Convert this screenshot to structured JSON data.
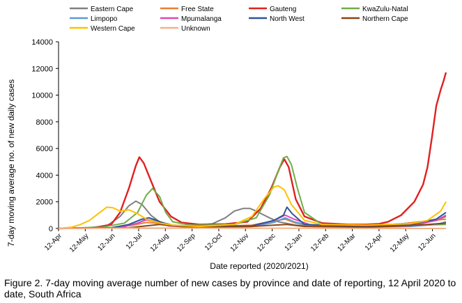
{
  "caption": "Figure 2. 7-day moving average number of new cases by province and date of reporting, 12 April 2020 to date, South Africa",
  "chart_data": {
    "type": "line",
    "xlabel": "Date reported (2020/2021)",
    "ylabel": "7-day moving average no. of new daily cases",
    "ylim": [
      0,
      14000
    ],
    "yticks": [
      0,
      2000,
      4000,
      6000,
      8000,
      10000,
      12000,
      14000
    ],
    "x_tick_labels": [
      "12-Apr",
      "12-May",
      "12-Jun",
      "12-Jul",
      "12-Aug",
      "12-Sep",
      "12-Oct",
      "12-Nov",
      "12-Dec",
      "12-Jan",
      "12-Feb",
      "12-Mar",
      "12-Apr",
      "12-May",
      "12-Jun"
    ],
    "grid": false,
    "legend_position": "top",
    "series": [
      {
        "name": "Eastern Cape",
        "color": "#808080",
        "points": [
          [
            0,
            0
          ],
          [
            30,
            30
          ],
          [
            55,
            200
          ],
          [
            70,
            900
          ],
          [
            80,
            1700
          ],
          [
            88,
            2050
          ],
          [
            95,
            1800
          ],
          [
            105,
            1000
          ],
          [
            115,
            500
          ],
          [
            130,
            250
          ],
          [
            150,
            200
          ],
          [
            175,
            350
          ],
          [
            190,
            800
          ],
          [
            200,
            1300
          ],
          [
            210,
            1500
          ],
          [
            218,
            1500
          ],
          [
            225,
            1300
          ],
          [
            240,
            800
          ],
          [
            250,
            500
          ],
          [
            270,
            250
          ],
          [
            300,
            200
          ],
          [
            350,
            200
          ],
          [
            390,
            350
          ],
          [
            430,
            600
          ],
          [
            441,
            900
          ]
        ]
      },
      {
        "name": "Free State",
        "color": "#ED7D31",
        "points": [
          [
            0,
            0
          ],
          [
            60,
            50
          ],
          [
            85,
            250
          ],
          [
            100,
            450
          ],
          [
            110,
            400
          ],
          [
            130,
            200
          ],
          [
            170,
            150
          ],
          [
            220,
            250
          ],
          [
            240,
            500
          ],
          [
            258,
            700
          ],
          [
            270,
            400
          ],
          [
            300,
            150
          ],
          [
            350,
            150
          ],
          [
            380,
            250
          ],
          [
            410,
            500
          ],
          [
            441,
            700
          ]
        ]
      },
      {
        "name": "Gauteng",
        "color": "#E02020",
        "points": [
          [
            0,
            0
          ],
          [
            40,
            50
          ],
          [
            60,
            300
          ],
          [
            70,
            1200
          ],
          [
            80,
            3000
          ],
          [
            88,
            4700
          ],
          [
            92,
            5350
          ],
          [
            97,
            4900
          ],
          [
            105,
            3600
          ],
          [
            115,
            2000
          ],
          [
            128,
            900
          ],
          [
            140,
            450
          ],
          [
            160,
            300
          ],
          [
            190,
            330
          ],
          [
            215,
            500
          ],
          [
            230,
            1500
          ],
          [
            242,
            3000
          ],
          [
            252,
            4600
          ],
          [
            257,
            5200
          ],
          [
            262,
            4600
          ],
          [
            270,
            2200
          ],
          [
            280,
            900
          ],
          [
            300,
            400
          ],
          [
            330,
            300
          ],
          [
            350,
            300
          ],
          [
            365,
            350
          ],
          [
            375,
            500
          ],
          [
            390,
            1000
          ],
          [
            405,
            2000
          ],
          [
            415,
            3300
          ],
          [
            420,
            4600
          ],
          [
            425,
            6800
          ],
          [
            430,
            9200
          ],
          [
            435,
            10400
          ],
          [
            438,
            11000
          ],
          [
            441,
            11700
          ]
        ]
      },
      {
        "name": "KwaZulu-Natal",
        "color": "#70AD47",
        "points": [
          [
            0,
            0
          ],
          [
            50,
            100
          ],
          [
            75,
            400
          ],
          [
            90,
            1200
          ],
          [
            100,
            2500
          ],
          [
            107,
            3000
          ],
          [
            115,
            2400
          ],
          [
            122,
            1200
          ],
          [
            130,
            500
          ],
          [
            150,
            250
          ],
          [
            200,
            300
          ],
          [
            225,
            800
          ],
          [
            240,
            2500
          ],
          [
            250,
            4300
          ],
          [
            256,
            5300
          ],
          [
            260,
            5400
          ],
          [
            265,
            4800
          ],
          [
            272,
            3000
          ],
          [
            280,
            1200
          ],
          [
            300,
            300
          ],
          [
            350,
            200
          ],
          [
            400,
            250
          ],
          [
            441,
            300
          ]
        ]
      },
      {
        "name": "Limpopo",
        "color": "#5B9BD5",
        "points": [
          [
            0,
            0
          ],
          [
            70,
            50
          ],
          [
            90,
            400
          ],
          [
            100,
            700
          ],
          [
            110,
            550
          ],
          [
            125,
            250
          ],
          [
            150,
            100
          ],
          [
            220,
            150
          ],
          [
            245,
            450
          ],
          [
            258,
            800
          ],
          [
            268,
            500
          ],
          [
            290,
            150
          ],
          [
            350,
            100
          ],
          [
            400,
            150
          ],
          [
            430,
            300
          ],
          [
            441,
            500
          ]
        ]
      },
      {
        "name": "Mpumalanga",
        "color": "#E046B4",
        "points": [
          [
            0,
            0
          ],
          [
            70,
            50
          ],
          [
            90,
            400
          ],
          [
            100,
            650
          ],
          [
            110,
            500
          ],
          [
            125,
            200
          ],
          [
            150,
            100
          ],
          [
            220,
            150
          ],
          [
            245,
            600
          ],
          [
            258,
            1000
          ],
          [
            268,
            700
          ],
          [
            290,
            200
          ],
          [
            350,
            100
          ],
          [
            400,
            200
          ],
          [
            430,
            600
          ],
          [
            441,
            1000
          ]
        ]
      },
      {
        "name": "North West",
        "color": "#2E5597",
        "points": [
          [
            0,
            0
          ],
          [
            60,
            50
          ],
          [
            80,
            300
          ],
          [
            95,
            700
          ],
          [
            103,
            800
          ],
          [
            112,
            600
          ],
          [
            125,
            250
          ],
          [
            150,
            150
          ],
          [
            220,
            200
          ],
          [
            245,
            600
          ],
          [
            256,
            1000
          ],
          [
            260,
            1600
          ],
          [
            266,
            1100
          ],
          [
            280,
            300
          ],
          [
            350,
            150
          ],
          [
            400,
            300
          ],
          [
            430,
            700
          ],
          [
            441,
            1200
          ]
        ]
      },
      {
        "name": "Northern Cape",
        "color": "#8B4513",
        "points": [
          [
            0,
            0
          ],
          [
            80,
            50
          ],
          [
            100,
            200
          ],
          [
            115,
            300
          ],
          [
            130,
            200
          ],
          [
            160,
            100
          ],
          [
            220,
            150
          ],
          [
            245,
            250
          ],
          [
            260,
            300
          ],
          [
            280,
            150
          ],
          [
            350,
            100
          ],
          [
            390,
            200
          ],
          [
            420,
            300
          ],
          [
            441,
            400
          ]
        ]
      },
      {
        "name": "Western Cape",
        "color": "#FFC000",
        "points": [
          [
            0,
            0
          ],
          [
            15,
            100
          ],
          [
            25,
            300
          ],
          [
            35,
            600
          ],
          [
            45,
            1100
          ],
          [
            55,
            1600
          ],
          [
            62,
            1550
          ],
          [
            70,
            1300
          ],
          [
            80,
            1400
          ],
          [
            90,
            1100
          ],
          [
            100,
            700
          ],
          [
            115,
            400
          ],
          [
            130,
            250
          ],
          [
            160,
            150
          ],
          [
            200,
            300
          ],
          [
            220,
            900
          ],
          [
            235,
            2300
          ],
          [
            245,
            3100
          ],
          [
            250,
            3200
          ],
          [
            257,
            2900
          ],
          [
            265,
            1800
          ],
          [
            280,
            600
          ],
          [
            300,
            300
          ],
          [
            350,
            250
          ],
          [
            400,
            350
          ],
          [
            420,
            600
          ],
          [
            435,
            1300
          ],
          [
            441,
            2000
          ]
        ]
      },
      {
        "name": "Unknown",
        "color": "#F4B183",
        "points": [
          [
            0,
            0
          ],
          [
            100,
            30
          ],
          [
            200,
            20
          ],
          [
            300,
            10
          ],
          [
            441,
            0
          ]
        ]
      }
    ]
  }
}
